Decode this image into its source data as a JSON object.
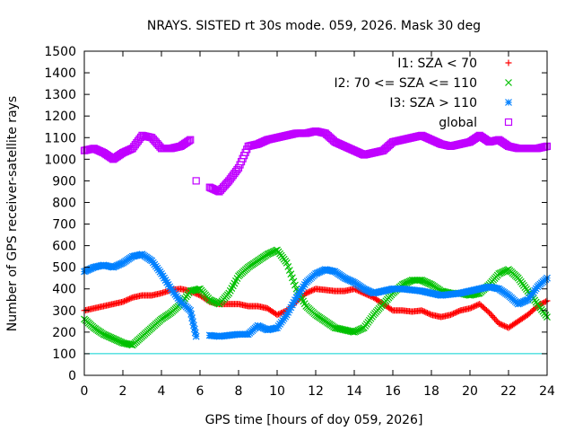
{
  "chart_data": {
    "type": "scatter",
    "title": "NRAYS. SISTED rt 30s mode. 059, 2026. Mask 30 deg",
    "xlabel": "GPS time [hours of doy 059, 2026]",
    "ylabel": "Number of GPS receiver-satellite rays",
    "xlim": [
      0,
      24
    ],
    "ylim": [
      0,
      1500
    ],
    "xticks": [
      0,
      2,
      4,
      6,
      8,
      10,
      12,
      14,
      16,
      18,
      20,
      22,
      24
    ],
    "yticks": [
      0,
      100,
      200,
      300,
      400,
      500,
      600,
      700,
      800,
      900,
      1000,
      1100,
      1200,
      1300,
      1400,
      1500
    ],
    "legend_position": "top-right",
    "reference_line": {
      "y": 100,
      "color": "#00d0d0"
    },
    "series": [
      {
        "name": "I1: SZA < 70",
        "marker": "+",
        "color": "#ff0000",
        "x": [
          0,
          0.5,
          1,
          1.5,
          2,
          2.5,
          3,
          3.5,
          4,
          4.5,
          5,
          5.5,
          6,
          6.5,
          7,
          7.5,
          8,
          8.5,
          9,
          9.5,
          10,
          10.5,
          11,
          11.5,
          12,
          12.5,
          13,
          13.5,
          14,
          14.5,
          15,
          15.5,
          16,
          16.5,
          17,
          17.5,
          18,
          18.5,
          19,
          19.5,
          20,
          20.5,
          21,
          21.5,
          22,
          22.5,
          23,
          23.5,
          24
        ],
        "y": [
          300,
          310,
          320,
          330,
          340,
          360,
          370,
          370,
          380,
          395,
          400,
          390,
          370,
          340,
          330,
          330,
          330,
          320,
          320,
          310,
          280,
          300,
          340,
          380,
          400,
          395,
          390,
          390,
          400,
          380,
          360,
          330,
          300,
          300,
          295,
          300,
          280,
          270,
          280,
          300,
          310,
          330,
          290,
          240,
          220,
          250,
          280,
          320,
          345
        ]
      },
      {
        "name": "I2: 70 <= SZA <= 110",
        "marker": "x",
        "color": "#00c000",
        "x": [
          0,
          0.5,
          1,
          1.5,
          2,
          2.5,
          3,
          3.5,
          4,
          4.5,
          5,
          5.5,
          6,
          6.5,
          7,
          7.5,
          8,
          8.5,
          9,
          9.5,
          10,
          10.5,
          11,
          11.5,
          12,
          12.5,
          13,
          13.5,
          14,
          14.5,
          15,
          15.5,
          16,
          16.5,
          17,
          17.5,
          18,
          18.5,
          19,
          19.5,
          20,
          20.5,
          21,
          21.5,
          22,
          22.5,
          23,
          23.5,
          24
        ],
        "y": [
          260,
          220,
          190,
          170,
          150,
          140,
          180,
          220,
          260,
          290,
          330,
          390,
          400,
          350,
          330,
          380,
          460,
          500,
          530,
          560,
          580,
          520,
          400,
          320,
          280,
          250,
          220,
          210,
          200,
          220,
          280,
          330,
          380,
          420,
          440,
          440,
          420,
          390,
          380,
          380,
          370,
          380,
          420,
          470,
          490,
          450,
          390,
          330,
          270
        ]
      },
      {
        "name": "I3: SZA > 110",
        "marker": "*",
        "color": "#0080ff",
        "x": [
          0,
          0.5,
          1,
          1.5,
          2,
          2.5,
          3,
          3.5,
          4,
          4.5,
          5,
          5.5,
          5.8,
          6.5,
          7,
          7.5,
          8,
          8.5,
          9,
          9.5,
          10,
          10.5,
          11,
          11.5,
          12,
          12.5,
          13,
          13.5,
          14,
          14.5,
          15,
          15.5,
          16,
          16.5,
          17,
          17.5,
          18,
          18.5,
          19,
          19.5,
          20,
          20.5,
          21,
          21.5,
          22,
          22.5,
          23,
          23.5,
          24
        ],
        "y": [
          480,
          500,
          510,
          500,
          520,
          550,
          560,
          530,
          470,
          400,
          340,
          300,
          180,
          185,
          180,
          185,
          190,
          190,
          230,
          210,
          220,
          280,
          360,
          430,
          470,
          490,
          480,
          450,
          430,
          400,
          380,
          390,
          400,
          400,
          395,
          390,
          380,
          370,
          375,
          380,
          390,
          400,
          410,
          400,
          370,
          330,
          350,
          410,
          450
        ]
      },
      {
        "name": "global",
        "marker": "square",
        "color": "#c000ff",
        "x": [
          0,
          0.5,
          1,
          1.5,
          2,
          2.5,
          3,
          3.5,
          4,
          4.5,
          5,
          5.5,
          5.8,
          6.5,
          7,
          7.5,
          8,
          8.5,
          9,
          9.5,
          10,
          10.5,
          11,
          11.5,
          12,
          12.5,
          13,
          13.5,
          14,
          14.5,
          15,
          15.5,
          16,
          16.5,
          17,
          17.5,
          18,
          18.5,
          19,
          19.5,
          20,
          20.5,
          21,
          21.5,
          22,
          22.5,
          23,
          23.5,
          24
        ],
        "y": [
          1040,
          1050,
          1030,
          1000,
          1030,
          1050,
          1110,
          1100,
          1050,
          1050,
          1060,
          1090,
          900,
          870,
          850,
          900,
          960,
          1060,
          1070,
          1090,
          1100,
          1110,
          1120,
          1120,
          1130,
          1120,
          1080,
          1060,
          1040,
          1020,
          1030,
          1040,
          1080,
          1090,
          1100,
          1110,
          1090,
          1070,
          1060,
          1070,
          1080,
          1110,
          1080,
          1090,
          1060,
          1050,
          1050,
          1050,
          1060
        ]
      }
    ]
  }
}
